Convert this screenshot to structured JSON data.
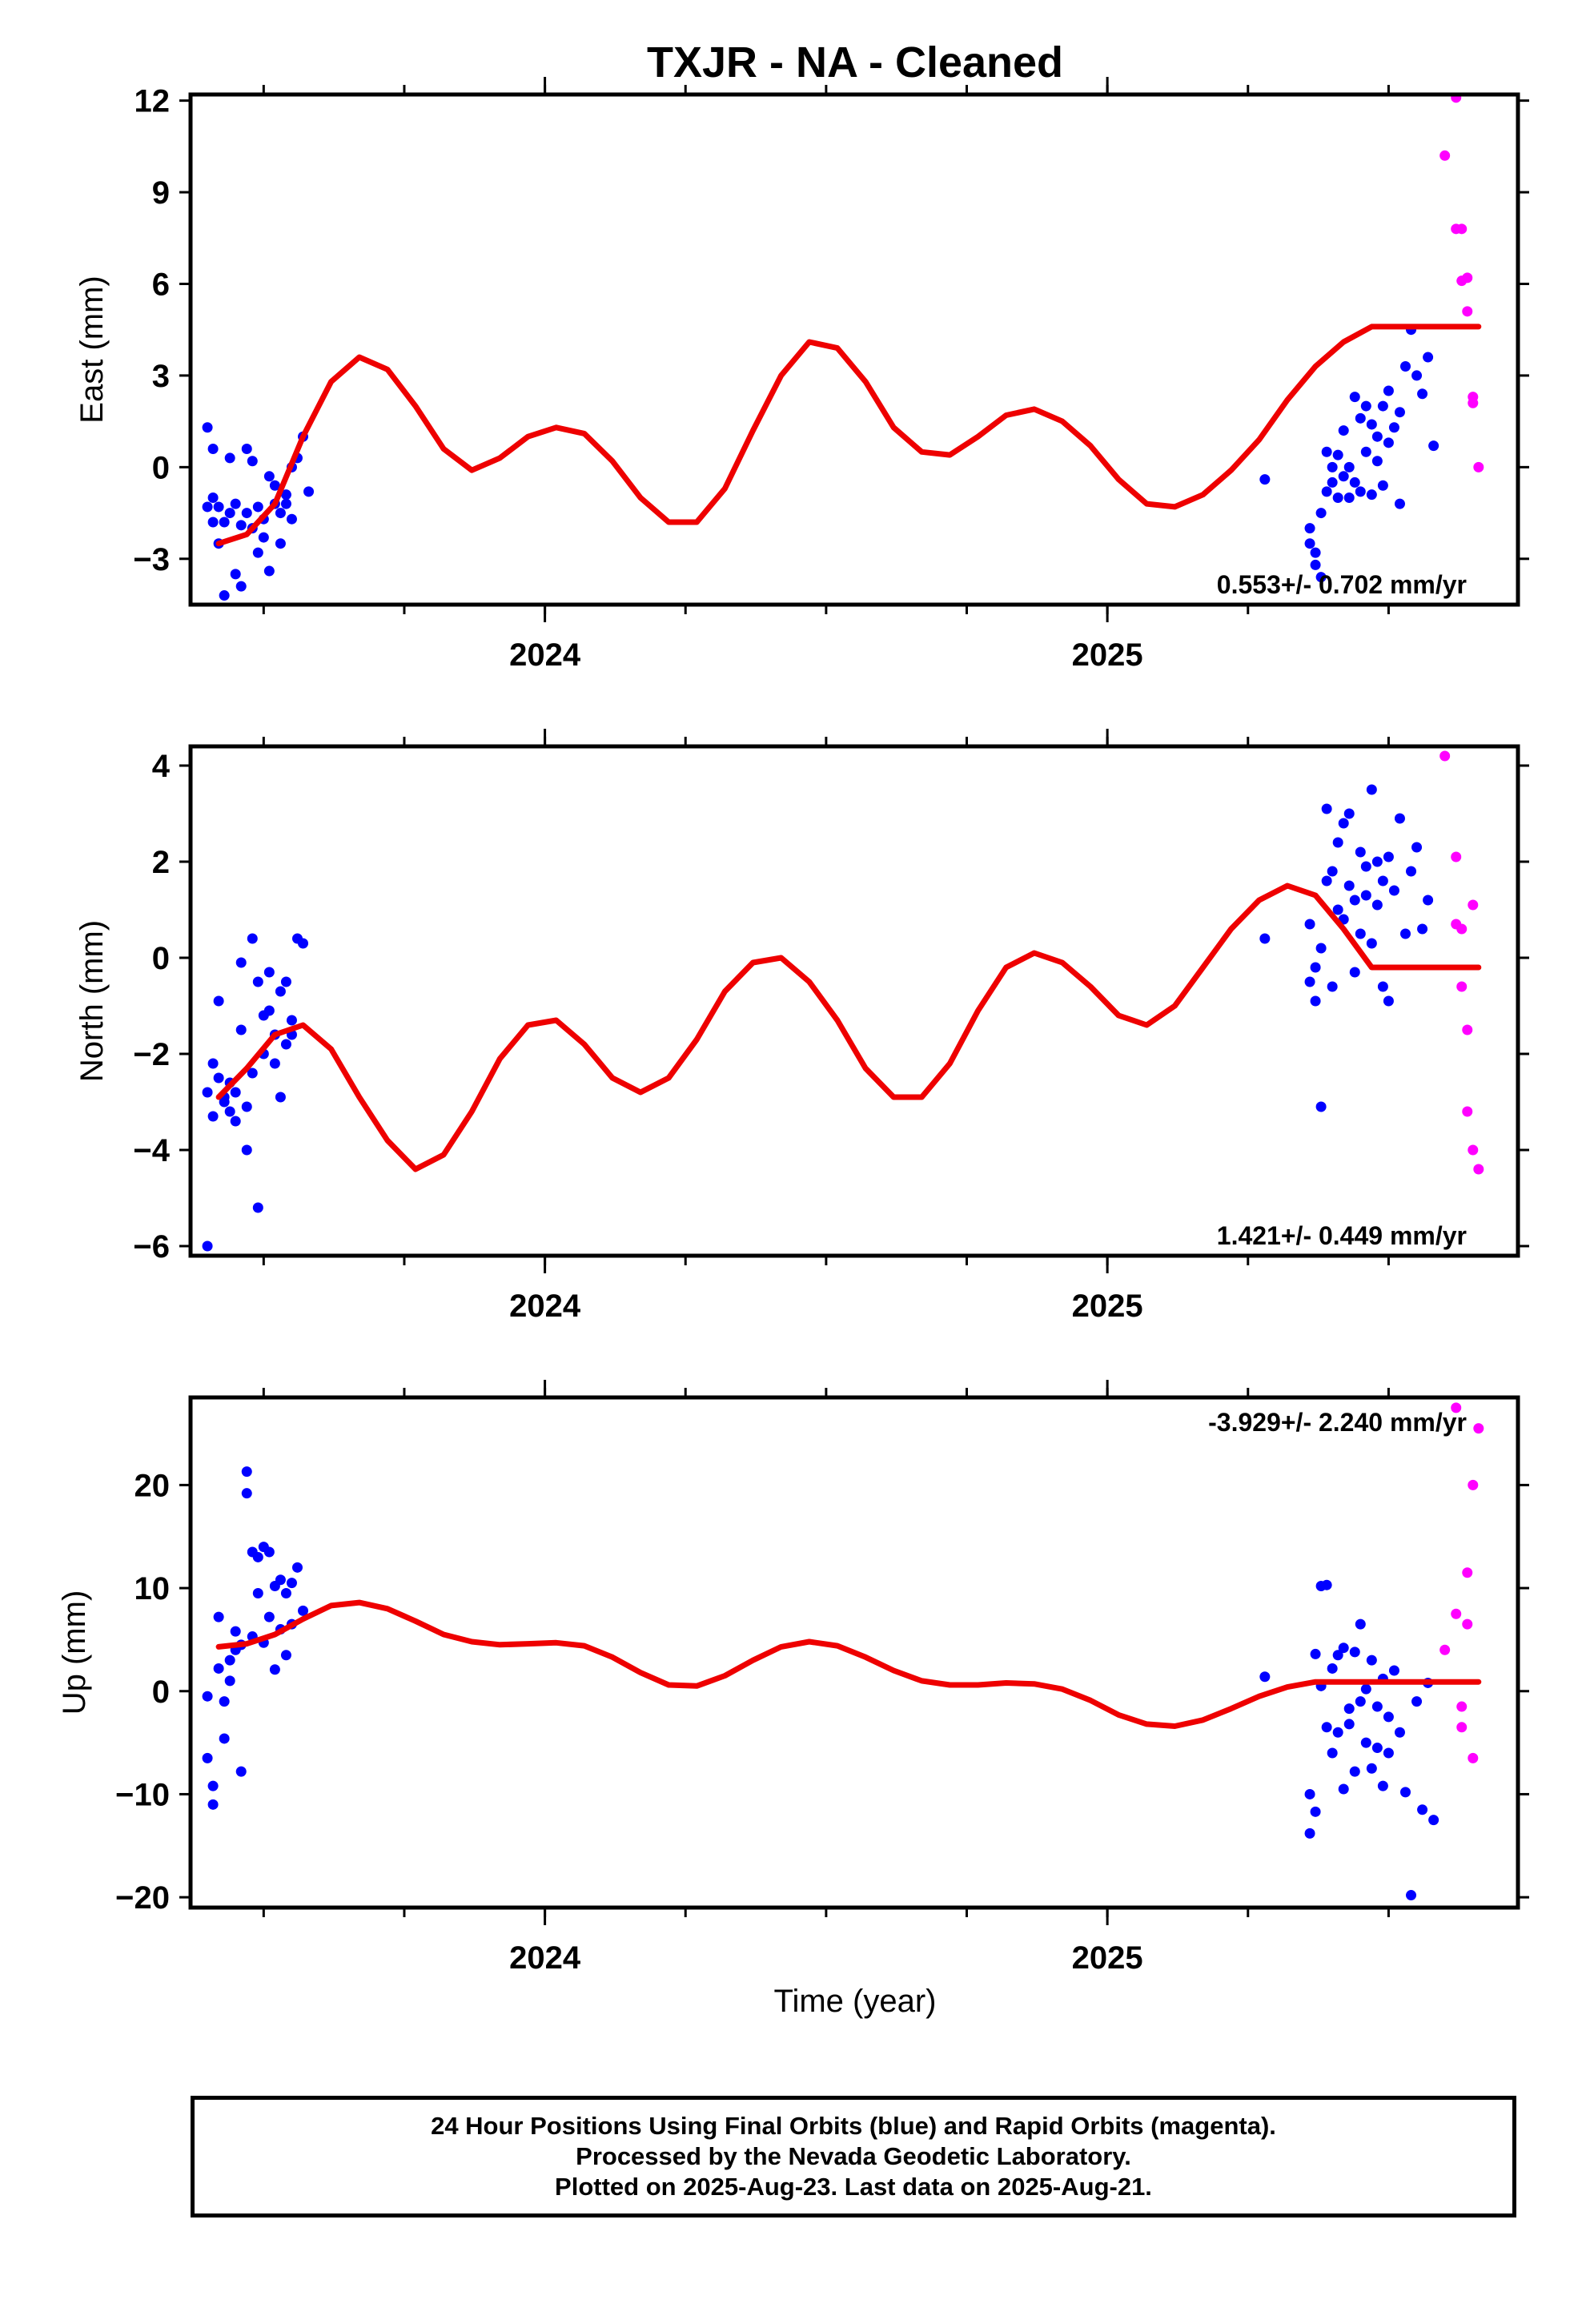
{
  "title": "TXJR  - NA - Cleaned",
  "xlabel": "Time (year)",
  "colors": {
    "final": "#0000ff",
    "rapid": "#ff00ff",
    "model": "#ee0000",
    "axes": "#000000"
  },
  "caption": {
    "line1": "24 Hour Positions Using Final Orbits (blue) and Rapid Orbits (magenta).",
    "line2": "Processed by the Nevada Geodetic Laboratory.",
    "line3": "Plotted on 2025-Aug-23. Last data on 2025-Aug-21."
  },
  "chart_data": [
    {
      "type": "scatter",
      "ylabel": "East (mm)",
      "xlim": [
        2023.37,
        2025.73
      ],
      "ylim": [
        -4.5,
        12.2
      ],
      "yticks": [
        -3,
        0,
        3,
        6,
        9,
        12
      ],
      "xticks": [
        2024,
        2025
      ],
      "rate": "0.553+/- 0.702 mm/yr",
      "rate_position": "bottom-right",
      "model": {
        "name": "model",
        "x": [
          2023.42,
          2023.47,
          2023.52,
          2023.57,
          2023.62,
          2023.67,
          2023.72,
          2023.77,
          2023.82,
          2023.87,
          2023.92,
          2023.97,
          2024.02,
          2024.07,
          2024.12,
          2024.17,
          2024.22,
          2024.27,
          2024.32,
          2024.37,
          2024.42,
          2024.47,
          2024.52,
          2024.57,
          2024.62,
          2024.67,
          2024.72,
          2024.77,
          2024.82,
          2024.87,
          2024.92,
          2024.97,
          2025.02,
          2025.07,
          2025.12,
          2025.17,
          2025.22,
          2025.27,
          2025.32,
          2025.37,
          2025.42,
          2025.47,
          2025.52,
          2025.57,
          2025.62,
          2025.66
        ],
        "y": [
          -2.5,
          -2.2,
          -1.2,
          1.0,
          2.8,
          3.6,
          3.2,
          2.0,
          0.6,
          -0.1,
          0.3,
          1.0,
          1.3,
          1.1,
          0.2,
          -1.0,
          -1.8,
          -1.8,
          -0.7,
          1.2,
          3.0,
          4.1,
          3.9,
          2.8,
          1.3,
          0.5,
          0.4,
          1.0,
          1.7,
          1.9,
          1.5,
          0.7,
          -0.4,
          -1.2,
          -1.3,
          -0.9,
          -0.1,
          0.9,
          2.2,
          3.3,
          4.1,
          4.6,
          4.6,
          4.6,
          4.6,
          4.6
        ]
      },
      "series": [
        {
          "name": "final",
          "x": [
            2023.4,
            2023.4,
            2023.41,
            2023.41,
            2023.41,
            2023.42,
            2023.42,
            2023.43,
            2023.43,
            2023.44,
            2023.44,
            2023.45,
            2023.45,
            2023.46,
            2023.46,
            2023.47,
            2023.47,
            2023.48,
            2023.48,
            2023.49,
            2023.49,
            2023.5,
            2023.5,
            2023.51,
            2023.51,
            2023.52,
            2023.52,
            2023.53,
            2023.53,
            2023.54,
            2023.54,
            2023.55,
            2023.55,
            2023.56,
            2023.57,
            2023.58,
            2025.28,
            2025.36,
            2025.36,
            2025.37,
            2025.37,
            2025.38,
            2025.38,
            2025.39,
            2025.39,
            2025.4,
            2025.4,
            2025.41,
            2025.41,
            2025.42,
            2025.42,
            2025.43,
            2025.43,
            2025.44,
            2025.44,
            2025.45,
            2025.45,
            2025.46,
            2025.46,
            2025.47,
            2025.47,
            2025.48,
            2025.48,
            2025.49,
            2025.49,
            2025.5,
            2025.5,
            2025.51,
            2025.52,
            2025.52,
            2025.53,
            2025.54,
            2025.55,
            2025.56,
            2025.57,
            2025.58
          ],
          "y": [
            -1.3,
            1.3,
            -1.8,
            0.6,
            -1.0,
            -2.5,
            -1.3,
            -4.2,
            -1.8,
            0.3,
            -1.5,
            -3.5,
            -1.2,
            -1.9,
            -3.9,
            -1.5,
            0.6,
            -2.0,
            0.2,
            -2.8,
            -1.3,
            -1.7,
            -2.3,
            -0.3,
            -3.4,
            -1.2,
            -0.6,
            -2.5,
            -1.5,
            -0.9,
            -1.2,
            0.0,
            -1.7,
            0.3,
            1.0,
            -0.8,
            -0.4,
            -2.5,
            -2.0,
            -3.2,
            -2.8,
            -3.6,
            -1.5,
            -0.8,
            0.5,
            -0.5,
            0.0,
            -1.0,
            0.4,
            -0.3,
            1.2,
            -1.0,
            0.0,
            -0.5,
            2.3,
            -0.8,
            1.6,
            0.5,
            2.0,
            -0.9,
            1.4,
            0.2,
            1.0,
            -0.6,
            2.0,
            0.8,
            2.5,
            1.3,
            -1.2,
            1.8,
            3.3,
            4.5,
            3.0,
            2.4,
            3.6,
            0.7
          ]
        },
        {
          "name": "rapid",
          "x": [
            2025.6,
            2025.62,
            2025.62,
            2025.63,
            2025.63,
            2025.64,
            2025.64,
            2025.65,
            2025.65,
            2025.66
          ],
          "y": [
            10.2,
            12.1,
            7.8,
            7.8,
            6.1,
            6.2,
            5.1,
            2.3,
            2.1,
            0.0
          ]
        }
      ]
    },
    {
      "type": "scatter",
      "ylabel": "North (mm)",
      "xlim": [
        2023.37,
        2025.73
      ],
      "ylim": [
        -6.2,
        4.4
      ],
      "yticks": [
        -6,
        -4,
        -2,
        0,
        2,
        4
      ],
      "xticks": [
        2024,
        2025
      ],
      "rate": "1.421+/- 0.449 mm/yr",
      "rate_position": "bottom-right",
      "model": {
        "name": "model",
        "x": [
          2023.42,
          2023.47,
          2023.52,
          2023.57,
          2023.62,
          2023.67,
          2023.72,
          2023.77,
          2023.82,
          2023.87,
          2023.92,
          2023.97,
          2024.02,
          2024.07,
          2024.12,
          2024.17,
          2024.22,
          2024.27,
          2024.32,
          2024.37,
          2024.42,
          2024.47,
          2024.52,
          2024.57,
          2024.62,
          2024.67,
          2024.72,
          2024.77,
          2024.82,
          2024.87,
          2024.92,
          2024.97,
          2025.02,
          2025.07,
          2025.12,
          2025.17,
          2025.22,
          2025.27,
          2025.32,
          2025.37,
          2025.42,
          2025.47,
          2025.52,
          2025.57,
          2025.62,
          2025.66
        ],
        "y": [
          -2.9,
          -2.3,
          -1.6,
          -1.4,
          -1.9,
          -2.9,
          -3.8,
          -4.4,
          -4.1,
          -3.2,
          -2.1,
          -1.4,
          -1.3,
          -1.8,
          -2.5,
          -2.8,
          -2.5,
          -1.7,
          -0.7,
          -0.1,
          0.0,
          -0.5,
          -1.3,
          -2.3,
          -2.9,
          -2.9,
          -2.2,
          -1.1,
          -0.2,
          0.1,
          -0.1,
          -0.6,
          -1.2,
          -1.4,
          -1.0,
          -0.2,
          0.6,
          1.2,
          1.5,
          1.3,
          0.6,
          -0.2,
          -0.2,
          -0.2,
          -0.2,
          -0.2
        ]
      },
      "series": [
        {
          "name": "final",
          "x": [
            2023.4,
            2023.4,
            2023.41,
            2023.41,
            2023.42,
            2023.42,
            2023.43,
            2023.43,
            2023.44,
            2023.44,
            2023.45,
            2023.45,
            2023.46,
            2023.46,
            2023.47,
            2023.47,
            2023.48,
            2023.48,
            2023.49,
            2023.49,
            2023.5,
            2023.5,
            2023.51,
            2023.51,
            2023.52,
            2023.52,
            2023.53,
            2023.53,
            2023.54,
            2023.54,
            2023.55,
            2023.55,
            2023.56,
            2023.57,
            2025.28,
            2025.36,
            2025.36,
            2025.37,
            2025.37,
            2025.38,
            2025.38,
            2025.39,
            2025.39,
            2025.4,
            2025.4,
            2025.41,
            2025.41,
            2025.42,
            2025.42,
            2025.43,
            2025.43,
            2025.44,
            2025.44,
            2025.45,
            2025.45,
            2025.46,
            2025.46,
            2025.47,
            2025.47,
            2025.48,
            2025.48,
            2025.49,
            2025.49,
            2025.5,
            2025.5,
            2025.51,
            2025.52,
            2025.53,
            2025.54,
            2025.55,
            2025.56,
            2025.57
          ],
          "y": [
            -6.0,
            -2.8,
            -2.2,
            -3.3,
            -2.5,
            -0.9,
            -3.0,
            -2.9,
            -2.6,
            -3.2,
            -3.4,
            -2.8,
            -1.5,
            -0.1,
            -3.1,
            -4.0,
            -2.4,
            0.4,
            -5.2,
            -0.5,
            -1.2,
            -2.0,
            -0.3,
            -1.1,
            -1.6,
            -2.2,
            -0.7,
            -2.9,
            -1.8,
            -0.5,
            -1.3,
            -1.6,
            0.4,
            0.3,
            0.4,
            -0.5,
            0.7,
            -0.9,
            -0.2,
            -3.1,
            0.2,
            1.6,
            3.1,
            -0.6,
            1.8,
            1.0,
            2.4,
            0.8,
            2.8,
            1.5,
            3.0,
            -0.3,
            1.2,
            2.2,
            0.5,
            1.9,
            1.3,
            3.5,
            0.3,
            2.0,
            1.1,
            1.6,
            -0.6,
            2.1,
            -0.9,
            1.4,
            2.9,
            0.5,
            1.8,
            2.3,
            0.6,
            1.2
          ]
        },
        {
          "name": "rapid",
          "x": [
            2025.6,
            2025.62,
            2025.62,
            2025.63,
            2025.63,
            2025.64,
            2025.64,
            2025.65,
            2025.65,
            2025.66
          ],
          "y": [
            4.2,
            2.1,
            0.7,
            -0.6,
            0.6,
            -1.5,
            -3.2,
            1.1,
            -4.0,
            -4.4
          ]
        }
      ]
    },
    {
      "type": "scatter",
      "ylabel": "Up (mm)",
      "xlim": [
        2023.37,
        2025.73
      ],
      "ylim": [
        -21,
        28.5
      ],
      "yticks": [
        -20,
        -10,
        0,
        10,
        20
      ],
      "xticks": [
        2024,
        2025
      ],
      "rate": "-3.929+/- 2.240 mm/yr",
      "rate_position": "top-right",
      "model": {
        "name": "model",
        "x": [
          2023.42,
          2023.47,
          2023.52,
          2023.57,
          2023.62,
          2023.67,
          2023.72,
          2023.77,
          2023.82,
          2023.87,
          2023.92,
          2023.97,
          2024.02,
          2024.07,
          2024.12,
          2024.17,
          2024.22,
          2024.27,
          2024.32,
          2024.37,
          2024.42,
          2024.47,
          2024.52,
          2024.57,
          2024.62,
          2024.67,
          2024.72,
          2024.77,
          2024.82,
          2024.87,
          2024.92,
          2024.97,
          2025.02,
          2025.07,
          2025.12,
          2025.17,
          2025.22,
          2025.27,
          2025.32,
          2025.37,
          2025.42,
          2025.47,
          2025.52,
          2025.57,
          2025.62,
          2025.66
        ],
        "y": [
          4.3,
          4.6,
          5.5,
          7.0,
          8.3,
          8.6,
          8.0,
          6.8,
          5.5,
          4.8,
          4.5,
          4.6,
          4.7,
          4.4,
          3.3,
          1.8,
          0.6,
          0.5,
          1.5,
          3.0,
          4.3,
          4.8,
          4.4,
          3.3,
          2.0,
          1.0,
          0.6,
          0.6,
          0.8,
          0.7,
          0.2,
          -0.9,
          -2.3,
          -3.2,
          -3.4,
          -2.8,
          -1.7,
          -0.5,
          0.4,
          0.9,
          0.9,
          0.9,
          0.9,
          0.9,
          0.9,
          0.9
        ]
      },
      "series": [
        {
          "name": "final",
          "x": [
            2023.4,
            2023.4,
            2023.41,
            2023.41,
            2023.42,
            2023.42,
            2023.43,
            2023.43,
            2023.44,
            2023.44,
            2023.45,
            2023.45,
            2023.46,
            2023.46,
            2023.47,
            2023.47,
            2023.48,
            2023.48,
            2023.49,
            2023.49,
            2023.5,
            2023.5,
            2023.51,
            2023.51,
            2023.52,
            2023.52,
            2023.53,
            2023.53,
            2023.54,
            2023.54,
            2023.55,
            2023.55,
            2023.56,
            2023.57,
            2025.28,
            2025.36,
            2025.36,
            2025.37,
            2025.37,
            2025.38,
            2025.38,
            2025.39,
            2025.39,
            2025.4,
            2025.4,
            2025.41,
            2025.41,
            2025.42,
            2025.42,
            2025.43,
            2025.43,
            2025.44,
            2025.44,
            2025.45,
            2025.45,
            2025.46,
            2025.46,
            2025.47,
            2025.47,
            2025.48,
            2025.48,
            2025.49,
            2025.49,
            2025.5,
            2025.5,
            2025.51,
            2025.52,
            2025.53,
            2025.54,
            2025.55,
            2025.56,
            2025.57,
            2025.58
          ],
          "y": [
            -0.5,
            -6.5,
            -11.0,
            -9.2,
            7.2,
            2.2,
            -4.6,
            -1.0,
            3.0,
            1.0,
            4.0,
            5.8,
            -7.8,
            4.5,
            21.3,
            19.2,
            13.5,
            5.3,
            13.0,
            9.5,
            14.0,
            4.7,
            13.5,
            7.2,
            10.2,
            2.1,
            6.0,
            10.8,
            9.5,
            3.5,
            10.5,
            6.5,
            12.0,
            7.8,
            1.4,
            -10.0,
            -13.8,
            3.6,
            -11.7,
            10.2,
            0.5,
            10.3,
            -3.5,
            2.2,
            -6.0,
            3.5,
            -4.0,
            -9.5,
            4.2,
            -1.7,
            -3.2,
            3.8,
            -7.8,
            -1.0,
            6.5,
            -5.0,
            0.2,
            3.0,
            -7.5,
            -1.5,
            -5.5,
            1.2,
            -9.2,
            -2.5,
            -6.0,
            2.0,
            -4.0,
            -9.8,
            -19.8,
            -1.0,
            -11.5,
            0.8,
            -12.5
          ]
        },
        {
          "name": "rapid",
          "x": [
            2025.6,
            2025.62,
            2025.62,
            2025.63,
            2025.63,
            2025.64,
            2025.64,
            2025.65,
            2025.65,
            2025.66
          ],
          "y": [
            4.0,
            27.5,
            7.5,
            -1.5,
            -3.5,
            11.5,
            6.5,
            -6.5,
            20.0,
            25.5
          ]
        }
      ]
    }
  ]
}
